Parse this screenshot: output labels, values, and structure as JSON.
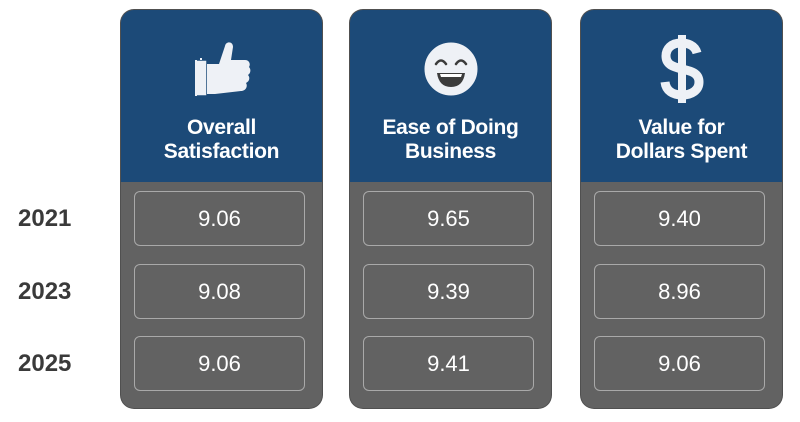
{
  "years": [
    "2021",
    "2023",
    "2025"
  ],
  "columns": [
    {
      "icon": "thumbs-up-icon",
      "title_line1": "Overall",
      "title_line2": "Satisfaction",
      "values": [
        "9.06",
        "9.08",
        "9.06"
      ]
    },
    {
      "icon": "smiley-face-icon",
      "title_line1": "Ease of Doing",
      "title_line2": "Business",
      "values": [
        "9.65",
        "9.39",
        "9.41"
      ]
    },
    {
      "icon": "dollar-sign-icon",
      "title_line1": "Value for",
      "title_line2": "Dollars Spent",
      "values": [
        "9.40",
        "8.96",
        "9.06"
      ]
    }
  ],
  "colors": {
    "header": "#1c4a78",
    "body": "#626262",
    "cell_border": "#a9a9a9",
    "year_text": "#3a3a3a"
  },
  "chart_data": {
    "type": "table",
    "categories": [
      "2021",
      "2023",
      "2025"
    ],
    "series": [
      {
        "name": "Overall Satisfaction",
        "values": [
          9.06,
          9.08,
          9.06
        ]
      },
      {
        "name": "Ease of Doing Business",
        "values": [
          9.65,
          9.39,
          9.41
        ]
      },
      {
        "name": "Value for Dollars Spent",
        "values": [
          9.4,
          8.96,
          9.06
        ]
      }
    ]
  }
}
